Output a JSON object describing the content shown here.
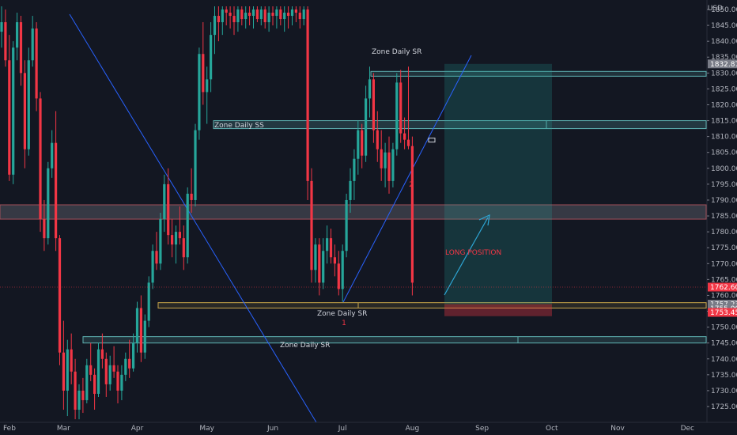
{
  "chart_data": {
    "type": "candlestick",
    "currency": "USD",
    "y_axis": {
      "range": [
        1721,
        1851
      ],
      "ticks": [
        1725,
        1730,
        1735,
        1740,
        1745,
        1750,
        1755,
        1760,
        1765,
        1770,
        1775,
        1780,
        1785,
        1790,
        1795,
        1800,
        1805,
        1810,
        1815,
        1820,
        1825,
        1830,
        1835,
        1840,
        1845,
        1850
      ],
      "tick_labels": [
        "1725.00",
        "1730.00",
        "1735.00",
        "1740.00",
        "1745.00",
        "1750.00",
        "1755.00",
        "1760.00",
        "1765.00",
        "1770.00",
        "1775.00",
        "1780.00",
        "1785.00",
        "1790.00",
        "1795.00",
        "1800.00",
        "1805.00",
        "1810.00",
        "1815.00",
        "1820.00",
        "1825.00",
        "1830.00",
        "1835.00",
        "1840.00",
        "1845.00",
        "1850.00"
      ]
    },
    "x_axis": {
      "labels": [
        {
          "label": "Feb",
          "bar": 0
        },
        {
          "label": "Mar",
          "bar": 16
        },
        {
          "label": "Apr",
          "bar": 35
        },
        {
          "label": "May",
          "bar": 53
        },
        {
          "label": "Jun",
          "bar": 70
        },
        {
          "label": "Jul",
          "bar": 88
        },
        {
          "label": "Aug",
          "bar": 106
        },
        {
          "label": "Sep",
          "bar": 124
        },
        {
          "label": "Oct",
          "bar": 142
        },
        {
          "label": "Nov",
          "bar": 159
        },
        {
          "label": "Dec",
          "bar": 177
        }
      ]
    },
    "candles": [
      [
        1843,
        1851,
        1838,
        1846
      ],
      [
        1846,
        1850,
        1832,
        1834
      ],
      [
        1834,
        1842,
        1796,
        1798
      ],
      [
        1798,
        1840,
        1795,
        1838
      ],
      [
        1838,
        1849,
        1834,
        1846
      ],
      [
        1846,
        1848,
        1826,
        1830
      ],
      [
        1830,
        1834,
        1800,
        1806
      ],
      [
        1806,
        1838,
        1804,
        1834
      ],
      [
        1834,
        1848,
        1832,
        1844
      ],
      [
        1844,
        1846,
        1818,
        1822
      ],
      [
        1822,
        1824,
        1780,
        1784
      ],
      [
        1784,
        1790,
        1774,
        1778
      ],
      [
        1778,
        1802,
        1776,
        1800
      ],
      [
        1800,
        1812,
        1797,
        1808
      ],
      [
        1808,
        1818,
        1774,
        1778
      ],
      [
        1778,
        1779,
        1738,
        1742
      ],
      [
        1742,
        1752,
        1724,
        1730
      ],
      [
        1730,
        1746,
        1722,
        1743
      ],
      [
        1743,
        1748,
        1732,
        1736
      ],
      [
        1736,
        1740,
        1721,
        1724
      ],
      [
        1724,
        1732,
        1721,
        1730
      ],
      [
        1730,
        1734,
        1723,
        1727
      ],
      [
        1727,
        1740,
        1726,
        1738
      ],
      [
        1738,
        1745,
        1733,
        1735
      ],
      [
        1735,
        1737,
        1724,
        1729
      ],
      [
        1729,
        1745,
        1728,
        1743
      ],
      [
        1743,
        1748,
        1737,
        1740
      ],
      [
        1740,
        1742,
        1728,
        1732
      ],
      [
        1732,
        1741,
        1730,
        1738
      ],
      [
        1738,
        1744,
        1734,
        1736
      ],
      [
        1736,
        1738,
        1726,
        1730
      ],
      [
        1730,
        1738,
        1727,
        1735
      ],
      [
        1735,
        1742,
        1733,
        1740
      ],
      [
        1740,
        1746,
        1734,
        1737
      ],
      [
        1737,
        1748,
        1736,
        1745
      ],
      [
        1745,
        1758,
        1742,
        1756
      ],
      [
        1756,
        1760,
        1739,
        1742
      ],
      [
        1742,
        1754,
        1740,
        1752
      ],
      [
        1752,
        1766,
        1750,
        1764
      ],
      [
        1764,
        1776,
        1762,
        1774
      ],
      [
        1774,
        1780,
        1768,
        1770
      ],
      [
        1770,
        1786,
        1768,
        1784
      ],
      [
        1784,
        1798,
        1780,
        1795
      ],
      [
        1795,
        1800,
        1776,
        1779
      ],
      [
        1779,
        1784,
        1772,
        1776
      ],
      [
        1776,
        1782,
        1770,
        1780
      ],
      [
        1780,
        1788,
        1776,
        1778
      ],
      [
        1778,
        1782,
        1768,
        1772
      ],
      [
        1772,
        1794,
        1770,
        1792
      ],
      [
        1792,
        1800,
        1786,
        1790
      ],
      [
        1790,
        1814,
        1788,
        1812
      ],
      [
        1812,
        1838,
        1809,
        1836
      ],
      [
        1836,
        1846,
        1820,
        1824
      ],
      [
        1824,
        1832,
        1814,
        1828
      ],
      [
        1828,
        1846,
        1824,
        1842
      ],
      [
        1842,
        1851,
        1836,
        1848
      ],
      [
        1848,
        1851,
        1840,
        1846
      ],
      [
        1846,
        1851,
        1842,
        1850
      ],
      [
        1850,
        1851,
        1845,
        1849
      ],
      [
        1849,
        1851,
        1844,
        1848
      ],
      [
        1848,
        1851,
        1842,
        1846
      ],
      [
        1846,
        1851,
        1843,
        1850
      ],
      [
        1850,
        1851,
        1845,
        1847
      ],
      [
        1847,
        1851,
        1844,
        1849
      ],
      [
        1849,
        1851,
        1845,
        1848
      ],
      [
        1848,
        1851,
        1844,
        1850
      ],
      [
        1850,
        1851,
        1846,
        1847
      ],
      [
        1847,
        1851,
        1845,
        1850
      ],
      [
        1850,
        1851,
        1844,
        1846
      ],
      [
        1846,
        1851,
        1843,
        1849
      ],
      [
        1849,
        1851,
        1845,
        1848
      ],
      [
        1848,
        1851,
        1844,
        1850
      ],
      [
        1850,
        1851,
        1845,
        1847
      ],
      [
        1847,
        1851,
        1843,
        1849
      ],
      [
        1849,
        1851,
        1844,
        1848
      ],
      [
        1848,
        1851,
        1845,
        1850
      ],
      [
        1850,
        1851,
        1846,
        1849
      ],
      [
        1849,
        1851,
        1844,
        1847
      ],
      [
        1847,
        1851,
        1845,
        1850
      ],
      [
        1850,
        1851,
        1790,
        1796
      ],
      [
        1796,
        1800,
        1764,
        1768
      ],
      [
        1768,
        1778,
        1764,
        1776
      ],
      [
        1776,
        1778,
        1760,
        1764
      ],
      [
        1764,
        1778,
        1762,
        1774
      ],
      [
        1774,
        1782,
        1770,
        1778
      ],
      [
        1778,
        1781,
        1770,
        1772
      ],
      [
        1772,
        1776,
        1766,
        1770
      ],
      [
        1770,
        1774,
        1760,
        1762
      ],
      [
        1762,
        1776,
        1758,
        1774
      ],
      [
        1774,
        1792,
        1772,
        1790
      ],
      [
        1790,
        1800,
        1786,
        1796
      ],
      [
        1796,
        1806,
        1790,
        1803
      ],
      [
        1803,
        1815,
        1798,
        1812
      ],
      [
        1812,
        1814,
        1800,
        1804
      ],
      [
        1804,
        1826,
        1802,
        1822
      ],
      [
        1822,
        1832,
        1816,
        1828
      ],
      [
        1828,
        1830,
        1808,
        1812
      ],
      [
        1812,
        1818,
        1802,
        1806
      ],
      [
        1806,
        1812,
        1796,
        1800
      ],
      [
        1800,
        1808,
        1794,
        1805
      ],
      [
        1805,
        1810,
        1792,
        1796
      ],
      [
        1796,
        1808,
        1794,
        1806
      ],
      [
        1806,
        1830,
        1804,
        1827
      ],
      [
        1827,
        1831,
        1808,
        1811
      ],
      [
        1811,
        1816,
        1806,
        1809
      ],
      [
        1809,
        1832,
        1806,
        1807
      ],
      [
        1807,
        1810,
        1760,
        1764
      ]
    ]
  },
  "annotations": {
    "zones": [
      {
        "label": "Zone Daily SR",
        "y_top": 1830.5,
        "y_bottom": 1829.0
      },
      {
        "label": "Zone Daily SS",
        "y_top": 1815,
        "y_bottom": 1812.5
      },
      {
        "label": "",
        "y_top": 1788.5,
        "y_bottom": 1784
      },
      {
        "label": "Zone Daily SR",
        "y_top": 1757.7,
        "y_bottom": 1756
      },
      {
        "label": "Zone Daily SR",
        "y_top": 1747,
        "y_bottom": 1745
      }
    ],
    "labels": [
      {
        "text": "Zone Daily SR"
      },
      {
        "text": "Zone Daily SS"
      },
      {
        "text": "Zone Daily SR"
      },
      {
        "text": "Zone Daily SR"
      },
      {
        "text": "LONG POSITION"
      },
      {
        "text": "1"
      },
      {
        "text": "2"
      }
    ],
    "price_tags": [
      {
        "text": "1832.87",
        "value": 1832.87,
        "color": "#787b86"
      },
      {
        "text": "1762.60",
        "value": 1762.6,
        "color": "#f23645"
      },
      {
        "text": "1757.23",
        "value": 1757.23,
        "color": "#787b86"
      },
      {
        "text": "1755.00",
        "value": 1755.0,
        "color": "#787b86"
      },
      {
        "text": "1753.45",
        "value": 1753.45,
        "color": "#f23645"
      }
    ],
    "long_position": {
      "entry": 1757.23,
      "target": 1832.87,
      "stop": 1753.45
    }
  },
  "colors": {
    "background": "#131722",
    "bull": "#26a69a",
    "bear": "#f23645",
    "zone_teal": "#5fb3b3",
    "zone_gray": "#787b86",
    "zone_yellow": "#c9a64a",
    "trendline": "#2962ff",
    "arrow": "#2ea8d8",
    "long_label": "#f23645",
    "target_fill": "#26a69a",
    "stop_fill": "#f23645"
  }
}
